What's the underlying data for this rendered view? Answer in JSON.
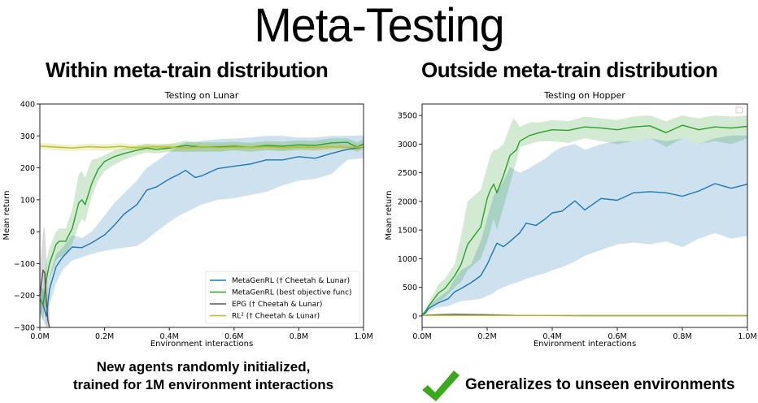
{
  "page": {
    "title": "Meta-Testing",
    "left_heading": "Within meta-train distribution",
    "right_heading": "Outside meta-train distribution",
    "left_caption_line1": "New agents randomly initialized,",
    "left_caption_line2": "trained for 1M environment interactions",
    "right_caption": "Generalizes to unseen environments",
    "check_icon_color": "#3aaa1c"
  },
  "chart_data": [
    {
      "type": "line",
      "title": "Testing on Lunar",
      "xlabel": "Environment interactions",
      "ylabel": "Mean return",
      "xlim": [
        0,
        1.0
      ],
      "ylim": [
        -300,
        400
      ],
      "xticks": [
        0,
        0.2,
        0.4,
        0.6,
        0.8,
        1.0
      ],
      "xtick_labels": [
        "0.0M",
        "0.2M",
        "0.4M",
        "0.6M",
        "0.8M",
        "1.0M"
      ],
      "yticks": [
        -300,
        -200,
        -100,
        0,
        100,
        200,
        300,
        400
      ],
      "ytick_labels": [
        "−300",
        "−200",
        "−100",
        "0",
        "100",
        "200",
        "300",
        "400"
      ],
      "grid": false,
      "legend_position": "lower-right",
      "series": [
        {
          "name": "MetaGenRL († Cheetah & Lunar)",
          "color": "#1f77b4",
          "x": [
            0.0,
            0.01,
            0.02,
            0.03,
            0.05,
            0.07,
            0.1,
            0.13,
            0.16,
            0.2,
            0.23,
            0.26,
            0.3,
            0.33,
            0.36,
            0.4,
            0.43,
            0.45,
            0.48,
            0.5,
            0.55,
            0.6,
            0.65,
            0.7,
            0.75,
            0.8,
            0.85,
            0.9,
            0.95,
            1.0
          ],
          "y": [
            -210,
            -230,
            -265,
            -180,
            -110,
            -80,
            -48,
            -50,
            -35,
            -10,
            20,
            55,
            85,
            130,
            140,
            165,
            180,
            192,
            170,
            175,
            198,
            205,
            212,
            225,
            225,
            235,
            230,
            245,
            258,
            265
          ],
          "lower": [
            -250,
            -280,
            -300,
            -230,
            -160,
            -120,
            -90,
            -80,
            -70,
            -60,
            -55,
            -50,
            -45,
            -25,
            0,
            30,
            50,
            60,
            75,
            85,
            100,
            105,
            115,
            125,
            145,
            160,
            165,
            180,
            225,
            230
          ],
          "upper": [
            -170,
            -180,
            -220,
            -140,
            -70,
            -50,
            -10,
            -20,
            0,
            50,
            90,
            120,
            160,
            200,
            220,
            250,
            270,
            280,
            280,
            285,
            290,
            292,
            295,
            300,
            300,
            295,
            295,
            300,
            300,
            302
          ]
        },
        {
          "name": "MetaGenRL (best objective func)",
          "color": "#2ca02c",
          "x": [
            0.0,
            0.01,
            0.02,
            0.03,
            0.05,
            0.06,
            0.08,
            0.1,
            0.12,
            0.13,
            0.14,
            0.16,
            0.18,
            0.2,
            0.23,
            0.26,
            0.3,
            0.33,
            0.36,
            0.4,
            0.45,
            0.5,
            0.55,
            0.6,
            0.65,
            0.7,
            0.75,
            0.8,
            0.85,
            0.9,
            0.95,
            0.98,
            1.0
          ],
          "y": [
            -210,
            -230,
            -150,
            -100,
            -40,
            -30,
            -30,
            10,
            90,
            100,
            85,
            150,
            195,
            220,
            235,
            245,
            255,
            262,
            258,
            262,
            270,
            265,
            265,
            268,
            264,
            270,
            268,
            272,
            270,
            278,
            280,
            265,
            275
          ],
          "lower": [
            -250,
            -280,
            -200,
            -150,
            -90,
            -80,
            -70,
            -40,
            20,
            40,
            30,
            110,
            160,
            190,
            210,
            225,
            240,
            248,
            245,
            250,
            250,
            250,
            250,
            255,
            250,
            255,
            252,
            258,
            255,
            262,
            262,
            250,
            262
          ],
          "upper": [
            -170,
            -180,
            -90,
            -50,
            0,
            10,
            10,
            70,
            180,
            190,
            170,
            225,
            230,
            240,
            255,
            262,
            270,
            275,
            272,
            275,
            285,
            280,
            280,
            282,
            278,
            284,
            282,
            286,
            285,
            292,
            292,
            280,
            290
          ]
        },
        {
          "name": "EPG († Cheetah & Lunar)",
          "color": "#555555",
          "x": [
            0.0,
            0.005,
            0.01,
            0.015,
            0.02,
            0.025,
            0.03
          ],
          "y": [
            -200,
            -160,
            -120,
            -130,
            -220,
            -280,
            -300
          ],
          "lower": [
            -280,
            -260,
            -220,
            -250,
            -300,
            -300,
            -300
          ],
          "upper": [
            -120,
            -60,
            0,
            20,
            -80,
            -200,
            -260
          ]
        },
        {
          "name": "RL² († Cheetah & Lunar)",
          "color": "#bcbd22",
          "x": [
            0.0,
            0.05,
            0.1,
            0.15,
            0.2,
            0.25,
            0.3,
            0.35,
            0.4,
            0.45,
            0.5,
            0.55,
            0.6,
            0.65,
            0.7,
            0.75,
            0.8,
            0.85,
            0.9,
            0.95,
            1.0
          ],
          "y": [
            268,
            265,
            262,
            266,
            264,
            267,
            263,
            266,
            265,
            262,
            266,
            263,
            265,
            264,
            266,
            263,
            265,
            264,
            266,
            264,
            265
          ],
          "lower": [
            258,
            255,
            252,
            256,
            254,
            257,
            253,
            256,
            255,
            250,
            255,
            252,
            255,
            254,
            256,
            253,
            255,
            254,
            256,
            254,
            255
          ],
          "upper": [
            278,
            275,
            272,
            276,
            274,
            277,
            273,
            276,
            275,
            274,
            277,
            274,
            275,
            274,
            276,
            273,
            275,
            274,
            276,
            274,
            275
          ]
        }
      ]
    },
    {
      "type": "line",
      "title": "Testing on Hopper",
      "xlabel": "Environment interactions",
      "ylabel": "Mean return",
      "xlim": [
        0,
        1.0
      ],
      "ylim": [
        -200,
        3700
      ],
      "xticks": [
        0,
        0.2,
        0.4,
        0.6,
        0.8,
        1.0
      ],
      "xtick_labels": [
        "0.0M",
        "0.2M",
        "0.4M",
        "0.6M",
        "0.8M",
        "1.0M"
      ],
      "yticks": [
        0,
        500,
        1000,
        1500,
        2000,
        2500,
        3000,
        3500
      ],
      "ytick_labels": [
        "0",
        "500",
        "1000",
        "1500",
        "2000",
        "2500",
        "3000",
        "3500"
      ],
      "grid": false,
      "legend_position": "top-right (empty)",
      "series": [
        {
          "name": "MetaGenRL († Cheetah & Lunar)",
          "color": "#1f77b4",
          "x": [
            0.0,
            0.01,
            0.02,
            0.05,
            0.08,
            0.1,
            0.12,
            0.15,
            0.18,
            0.2,
            0.22,
            0.23,
            0.25,
            0.27,
            0.3,
            0.32,
            0.35,
            0.38,
            0.4,
            0.43,
            0.47,
            0.5,
            0.55,
            0.6,
            0.65,
            0.7,
            0.75,
            0.8,
            0.85,
            0.9,
            0.95,
            1.0
          ],
          "y": [
            20,
            50,
            130,
            230,
            300,
            420,
            480,
            580,
            700,
            900,
            1150,
            1270,
            1210,
            1300,
            1450,
            1620,
            1580,
            1700,
            1800,
            1830,
            2010,
            1850,
            2050,
            2020,
            2150,
            2170,
            2150,
            2090,
            2180,
            2310,
            2230,
            2300
          ],
          "lower": [
            10,
            30,
            80,
            150,
            170,
            220,
            260,
            280,
            300,
            350,
            400,
            450,
            500,
            550,
            600,
            650,
            700,
            750,
            800,
            850,
            950,
            1050,
            1150,
            1250,
            1280,
            1250,
            1300,
            1200,
            1350,
            1450,
            1350,
            1400
          ],
          "upper": [
            30,
            80,
            180,
            320,
            450,
            650,
            800,
            900,
            1300,
            1700,
            2100,
            2200,
            2350,
            2600,
            2500,
            2550,
            2650,
            2750,
            2850,
            2950,
            3000,
            2900,
            3000,
            3050,
            3050,
            3100,
            3050,
            3100,
            3000,
            3100,
            3150,
            3150
          ]
        },
        {
          "name": "MetaGenRL (best objective func)",
          "color": "#2ca02c",
          "x": [
            0.0,
            0.01,
            0.02,
            0.05,
            0.07,
            0.1,
            0.12,
            0.14,
            0.16,
            0.18,
            0.2,
            0.21,
            0.22,
            0.23,
            0.25,
            0.27,
            0.28,
            0.29,
            0.3,
            0.33,
            0.36,
            0.4,
            0.45,
            0.5,
            0.55,
            0.6,
            0.65,
            0.7,
            0.75,
            0.8,
            0.85,
            0.9,
            0.95,
            1.0
          ],
          "y": [
            20,
            80,
            170,
            400,
            480,
            700,
            900,
            1250,
            1400,
            1550,
            2050,
            2200,
            2300,
            2150,
            2450,
            2800,
            2850,
            2900,
            3050,
            3150,
            3200,
            3250,
            3240,
            3300,
            3280,
            3250,
            3300,
            3320,
            3200,
            3330,
            3250,
            3300,
            3280,
            3310
          ],
          "lower": [
            10,
            40,
            120,
            250,
            320,
            500,
            600,
            800,
            900,
            1000,
            1300,
            1500,
            1700,
            1500,
            1900,
            2300,
            2500,
            2700,
            2950,
            3000,
            3050,
            3050,
            3020,
            3100,
            3050,
            3000,
            3050,
            3100,
            2950,
            3100,
            3000,
            3050,
            3000,
            3100
          ],
          "upper": [
            30,
            120,
            220,
            550,
            650,
            900,
            1400,
            2000,
            2100,
            2200,
            2600,
            2800,
            2900,
            2900,
            3000,
            3300,
            3450,
            3400,
            3300,
            3380,
            3380,
            3420,
            3400,
            3480,
            3450,
            3420,
            3480,
            3500,
            3400,
            3500,
            3450,
            3500,
            3480,
            3500
          ]
        },
        {
          "name": "EPG († Cheetah & Lunar)",
          "color": "#555555",
          "x": [
            0.0,
            0.05,
            0.1,
            0.2,
            0.3,
            0.5,
            1.0
          ],
          "y": [
            10,
            20,
            25,
            20,
            10,
            5,
            5
          ],
          "lower": [
            0,
            0,
            0,
            0,
            0,
            0,
            0
          ],
          "upper": [
            20,
            40,
            50,
            40,
            20,
            10,
            10
          ]
        },
        {
          "name": "RL² († Cheetah & Lunar)",
          "color": "#bcbd22",
          "x": [
            0.0,
            0.25,
            0.5,
            0.75,
            1.0
          ],
          "y": [
            10,
            10,
            10,
            10,
            10
          ],
          "lower": [
            5,
            5,
            5,
            5,
            5
          ],
          "upper": [
            15,
            15,
            15,
            15,
            15
          ]
        }
      ]
    }
  ]
}
